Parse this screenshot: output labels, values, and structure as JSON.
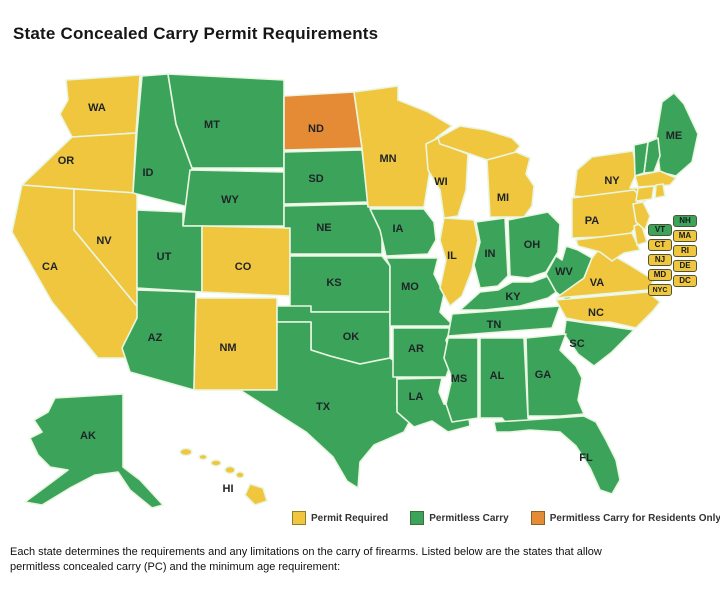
{
  "title": "State Concealed Carry Permit Requirements",
  "colors": {
    "permit": "#F0C63F",
    "permitless": "#3CA45A",
    "residents": "#E58B35",
    "stroke": "#E9F6E1",
    "label": "#1F2327",
    "callout_border": "#4E5535"
  },
  "legend": {
    "items": [
      {
        "label": "Permit Required",
        "status": "permit"
      },
      {
        "label": "Permitless Carry",
        "status": "permitless"
      },
      {
        "label": "Permitless Carry for Residents Only",
        "status": "residents"
      }
    ]
  },
  "footer": {
    "line1": "Each state determines the requirements and any limitations on the carry of firearms. Listed below are the states that allow",
    "line2": "permitless concealed carry (PC) and the minimum age requirement:"
  },
  "map": {
    "states": {
      "WA": {
        "abbr": "WA",
        "status": "permit"
      },
      "OR": {
        "abbr": "OR",
        "status": "permit"
      },
      "CA": {
        "abbr": "CA",
        "status": "permit"
      },
      "NV": {
        "abbr": "NV",
        "status": "permit"
      },
      "ID": {
        "abbr": "ID",
        "status": "permitless"
      },
      "MT": {
        "abbr": "MT",
        "status": "permitless"
      },
      "WY": {
        "abbr": "WY",
        "status": "permitless"
      },
      "UT": {
        "abbr": "UT",
        "status": "permitless"
      },
      "CO": {
        "abbr": "CO",
        "status": "permit"
      },
      "AZ": {
        "abbr": "AZ",
        "status": "permitless"
      },
      "NM": {
        "abbr": "NM",
        "status": "permit"
      },
      "ND": {
        "abbr": "ND",
        "status": "residents"
      },
      "SD": {
        "abbr": "SD",
        "status": "permitless"
      },
      "NE": {
        "abbr": "NE",
        "status": "permitless"
      },
      "KS": {
        "abbr": "KS",
        "status": "permitless"
      },
      "OK": {
        "abbr": "OK",
        "status": "permitless"
      },
      "TX": {
        "abbr": "TX",
        "status": "permitless"
      },
      "MN": {
        "abbr": "MN",
        "status": "permit"
      },
      "IA": {
        "abbr": "IA",
        "status": "permitless"
      },
      "MO": {
        "abbr": "MO",
        "status": "permitless"
      },
      "AR": {
        "abbr": "AR",
        "status": "permitless"
      },
      "LA": {
        "abbr": "LA",
        "status": "permitless"
      },
      "WI": {
        "abbr": "WI",
        "status": "permit"
      },
      "IL": {
        "abbr": "IL",
        "status": "permit"
      },
      "IN": {
        "abbr": "IN",
        "status": "permitless"
      },
      "MI": {
        "abbr": "MI",
        "status": "permit"
      },
      "OH": {
        "abbr": "OH",
        "status": "permitless"
      },
      "KY": {
        "abbr": "KY",
        "status": "permitless"
      },
      "TN": {
        "abbr": "TN",
        "status": "permitless"
      },
      "WV": {
        "abbr": "WV",
        "status": "permitless"
      },
      "VA": {
        "abbr": "VA",
        "status": "permit"
      },
      "NC": {
        "abbr": "NC",
        "status": "permit"
      },
      "SC": {
        "abbr": "SC",
        "status": "permitless"
      },
      "GA": {
        "abbr": "GA",
        "status": "permitless"
      },
      "AL": {
        "abbr": "AL",
        "status": "permitless"
      },
      "MS": {
        "abbr": "MS",
        "status": "permitless"
      },
      "FL": {
        "abbr": "FL",
        "status": "permitless"
      },
      "PA": {
        "abbr": "PA",
        "status": "permit"
      },
      "NY": {
        "abbr": "NY",
        "status": "permit"
      },
      "ME": {
        "abbr": "ME",
        "status": "permitless"
      },
      "NH": {
        "abbr": "NH",
        "status": "permitless"
      },
      "VT": {
        "abbr": "VT",
        "status": "permitless"
      },
      "MA": {
        "abbr": "MA",
        "status": "permit"
      },
      "CT": {
        "abbr": "CT",
        "status": "permit"
      },
      "RI": {
        "abbr": "RI",
        "status": "permit"
      },
      "NJ": {
        "abbr": "NJ",
        "status": "permit"
      },
      "DE": {
        "abbr": "DE",
        "status": "permit"
      },
      "MD": {
        "abbr": "MD",
        "status": "permit"
      },
      "AK": {
        "abbr": "AK",
        "status": "permitless"
      },
      "HI": {
        "abbr": "HI",
        "status": "permit"
      }
    },
    "callouts": {
      "col1": [
        {
          "abbr": "VT",
          "status": "permitless"
        },
        {
          "abbr": "CT",
          "status": "permit"
        },
        {
          "abbr": "NJ",
          "status": "permit"
        },
        {
          "abbr": "MD",
          "status": "permit"
        },
        {
          "abbr": "NYC",
          "status": "permit"
        }
      ],
      "col2": [
        {
          "abbr": "NH",
          "status": "permitless"
        },
        {
          "abbr": "MA",
          "status": "permit"
        },
        {
          "abbr": "RI",
          "status": "permit"
        },
        {
          "abbr": "DE",
          "status": "permit"
        },
        {
          "abbr": "DC",
          "status": "permit"
        }
      ]
    }
  }
}
